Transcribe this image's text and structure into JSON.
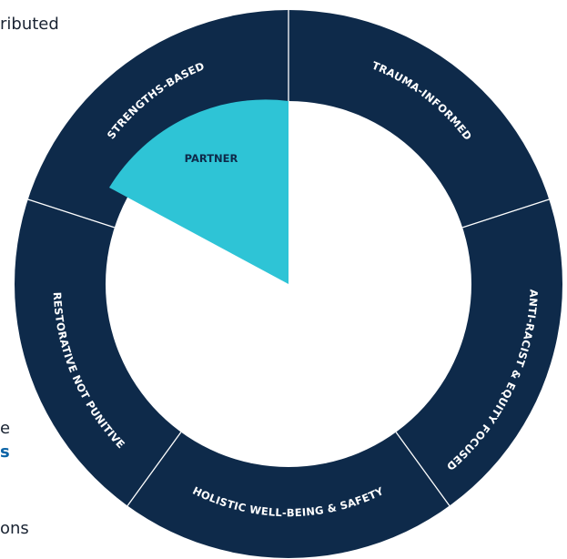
{
  "colors": {
    "ring": "#0e2a4a",
    "divider": "#ffffff",
    "highlight": "#2ec4d6",
    "center": "#ffffff",
    "text_body": "#1a2433",
    "text_link": "#0a63a6"
  },
  "background_text": {
    "top_fragment": "ributed",
    "mid_fragment": "e",
    "link_fragment": "s",
    "bottom_fragment": "ons"
  },
  "ring": {
    "segments": [
      {
        "id": "strengths",
        "label": "STRENGTHS-BASED"
      },
      {
        "id": "trauma",
        "label": "TRAUMA-INFORMED"
      },
      {
        "id": "antiracist",
        "label": "ANTI-RACIST & EQUITY FOCUSED"
      },
      {
        "id": "holistic",
        "label": "HOLISTIC WELL-BEING & SAFETY"
      },
      {
        "id": "restorative",
        "label": "RESTORATIVE NOT PUNITIVE"
      }
    ]
  },
  "center": {
    "highlight_label": "PARTNER"
  }
}
